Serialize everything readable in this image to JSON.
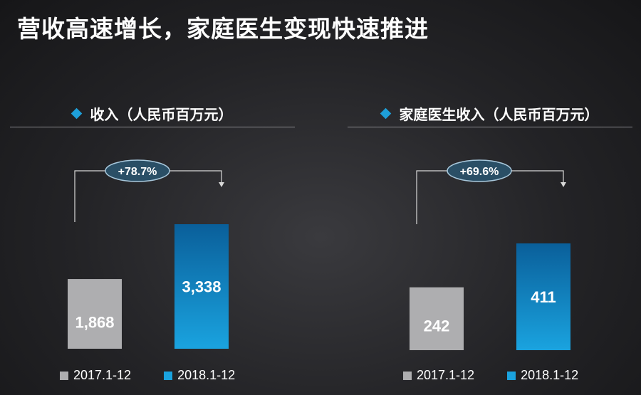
{
  "page": {
    "title": "营收高速增长，家庭医生变现快速推进"
  },
  "colors": {
    "gray": "#aeaeb0",
    "blue": "#1aa3df",
    "blue_dark": "#0a5f9a",
    "bubble": "#2a4f66",
    "bubble_border": "#a8c8dc",
    "bracket": "#d8d8d8"
  },
  "legend": {
    "label_2017": "2017.1-12",
    "label_2018": "2018.1-12"
  },
  "chart_data": [
    {
      "type": "bar",
      "title": "收入（人民币百万元）",
      "categories": [
        "2017.1-12",
        "2018.1-12"
      ],
      "values": [
        1868,
        3338
      ],
      "value_labels": [
        "1,868",
        "3,338"
      ],
      "growth_label": "+78.7%"
    },
    {
      "type": "bar",
      "title": "家庭医生收入（人民币百万元）",
      "categories": [
        "2017.1-12",
        "2018.1-12"
      ],
      "values": [
        242,
        411
      ],
      "value_labels": [
        "242",
        "411"
      ],
      "growth_label": "+69.6%"
    }
  ]
}
